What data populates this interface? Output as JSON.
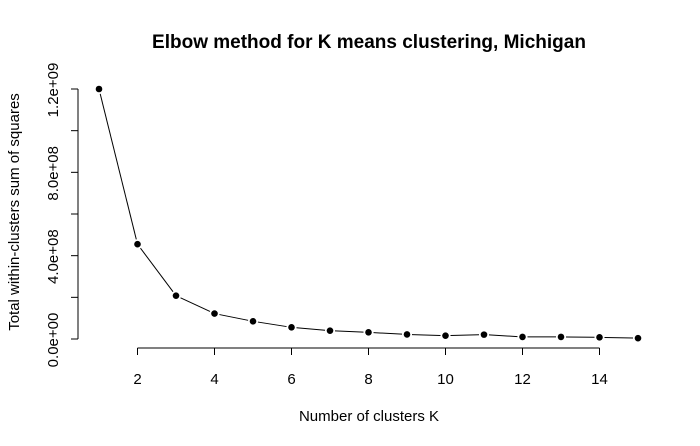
{
  "chart_data": {
    "type": "line",
    "title": "Elbow method for K means clustering, Michigan",
    "xlabel": "Number of clusters K",
    "ylabel": "Total within-clusters sum of squares",
    "xlim": [
      1,
      15
    ],
    "ylim": [
      0,
      1200000000
    ],
    "x_ticks": [
      2,
      4,
      6,
      8,
      10,
      12,
      14
    ],
    "x_tick_labels": [
      "2",
      "4",
      "6",
      "8",
      "10",
      "12",
      "14"
    ],
    "y_ticks": [
      0,
      200000000,
      400000000,
      600000000,
      800000000,
      1000000000,
      1200000000
    ],
    "y_tick_labels": [
      "0.0e+00",
      "",
      "4.0e+08",
      "",
      "8.0e+08",
      "",
      "1.2e+09"
    ],
    "grid": false,
    "series": [
      {
        "x": [
          1,
          2,
          3,
          4,
          5,
          6,
          7,
          8,
          9,
          10,
          11,
          12,
          13,
          14,
          15
        ],
        "values": [
          1200000000,
          455000000,
          208000000,
          122000000,
          85000000,
          56000000,
          40000000,
          32000000,
          22000000,
          16000000,
          21000000,
          10000000,
          10000000,
          8000000,
          4000000
        ]
      }
    ]
  }
}
